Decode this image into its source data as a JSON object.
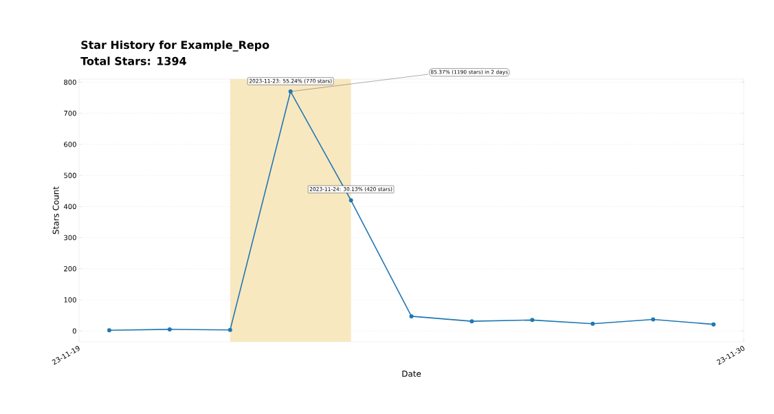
{
  "chart_data": {
    "type": "line",
    "title": "Star History for Example_Repo",
    "subtitle": "Total Stars: 1394",
    "xlabel": "Date",
    "ylabel": "Stars Count",
    "x": [
      "2023-11-20",
      "2023-11-21",
      "2023-11-22",
      "2023-11-23",
      "2023-11-24",
      "2023-11-25",
      "2023-11-26",
      "2023-11-27",
      "2023-11-28",
      "2023-11-29",
      "2023-11-30"
    ],
    "series": [
      {
        "color": "#1f77b4",
        "values": [
          2,
          5,
          3,
          770,
          420,
          47,
          31,
          35,
          23,
          37,
          21
        ]
      }
    ],
    "xlim": [
      "2023-11-19T12:00",
      "2023-11-30T12:00"
    ],
    "xticks": [
      {
        "value": "2023-11-19T12:00",
        "label": "23-11-19"
      },
      {
        "value": "2023-11-30T12:00",
        "label": "23-11-30"
      }
    ],
    "ylim": [
      -35,
      810
    ],
    "yticks": [
      0,
      100,
      200,
      300,
      400,
      500,
      600,
      700,
      800
    ],
    "bands": [
      {
        "axis": "x",
        "from": "2023-11-22",
        "to": "2023-11-24",
        "color": "#f8e8c0"
      }
    ],
    "annotations": [
      {
        "text": "2023-11-23: 55.24% (770 stars)",
        "x": "2023-11-23",
        "y": 770
      },
      {
        "text": "2023-11-24: 30.13% (420 stars)",
        "x": "2023-11-24",
        "y": 420
      },
      {
        "text": "85.37% (1190 stars) in 2 days",
        "x": "2023-11-23",
        "y": 770
      }
    ],
    "grid": "y",
    "marker": "circle",
    "line_style": "solid"
  }
}
